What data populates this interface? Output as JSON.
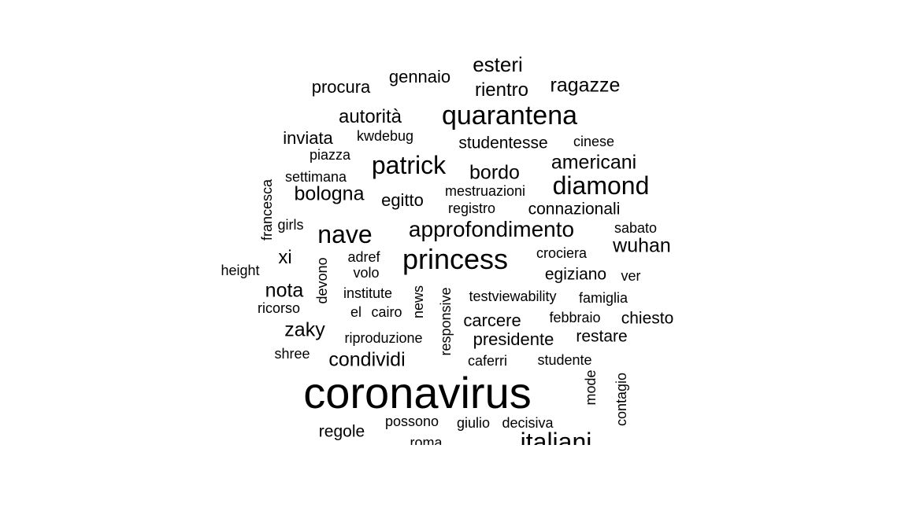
{
  "word_cloud": {
    "text_color": "#000000",
    "background": "#ffffff",
    "words": [
      {
        "text": "coronavirus",
        "vertical": false
      },
      {
        "text": "quarantena",
        "vertical": false
      },
      {
        "text": "princess",
        "vertical": false
      },
      {
        "text": "diamond",
        "vertical": false
      },
      {
        "text": "patrick",
        "vertical": false
      },
      {
        "text": "nave",
        "vertical": false
      },
      {
        "text": "italiani",
        "vertical": false
      },
      {
        "text": "approfondimento",
        "vertical": false
      },
      {
        "text": "esteri",
        "vertical": false
      },
      {
        "text": "ragazze",
        "vertical": false
      },
      {
        "text": "rientro",
        "vertical": false
      },
      {
        "text": "gennaio",
        "vertical": false
      },
      {
        "text": "procura",
        "vertical": false
      },
      {
        "text": "autorità",
        "vertical": false
      },
      {
        "text": "inviata",
        "vertical": false
      },
      {
        "text": "kwdebug",
        "vertical": false
      },
      {
        "text": "studentesse",
        "vertical": false
      },
      {
        "text": "cinese",
        "vertical": false
      },
      {
        "text": "piazza",
        "vertical": false
      },
      {
        "text": "settimana",
        "vertical": false
      },
      {
        "text": "bordo",
        "vertical": false
      },
      {
        "text": "americani",
        "vertical": false
      },
      {
        "text": "bologna",
        "vertical": false
      },
      {
        "text": "egitto",
        "vertical": false
      },
      {
        "text": "mestruazioni",
        "vertical": false
      },
      {
        "text": "registro",
        "vertical": false
      },
      {
        "text": "connazionali",
        "vertical": false
      },
      {
        "text": "francesca",
        "vertical": true
      },
      {
        "text": "girls",
        "vertical": false
      },
      {
        "text": "sabato",
        "vertical": false
      },
      {
        "text": "wuhan",
        "vertical": false
      },
      {
        "text": "xi",
        "vertical": false
      },
      {
        "text": "adref",
        "vertical": false
      },
      {
        "text": "crociera",
        "vertical": false
      },
      {
        "text": "height",
        "vertical": false
      },
      {
        "text": "devono",
        "vertical": true
      },
      {
        "text": "volo",
        "vertical": false
      },
      {
        "text": "egiziano",
        "vertical": false
      },
      {
        "text": "ver",
        "vertical": false
      },
      {
        "text": "nota",
        "vertical": false
      },
      {
        "text": "institute",
        "vertical": false
      },
      {
        "text": "news",
        "vertical": true
      },
      {
        "text": "responsive",
        "vertical": true
      },
      {
        "text": "testviewability",
        "vertical": false
      },
      {
        "text": "famiglia",
        "vertical": false
      },
      {
        "text": "ricorso",
        "vertical": false
      },
      {
        "text": "el",
        "vertical": false
      },
      {
        "text": "cairo",
        "vertical": false
      },
      {
        "text": "carcere",
        "vertical": false
      },
      {
        "text": "febbraio",
        "vertical": false
      },
      {
        "text": "chiesto",
        "vertical": false
      },
      {
        "text": "zaky",
        "vertical": false
      },
      {
        "text": "riproduzione",
        "vertical": false
      },
      {
        "text": "presidente",
        "vertical": false
      },
      {
        "text": "restare",
        "vertical": false
      },
      {
        "text": "shree",
        "vertical": false
      },
      {
        "text": "condividi",
        "vertical": false
      },
      {
        "text": "caferri",
        "vertical": false
      },
      {
        "text": "studente",
        "vertical": false
      },
      {
        "text": "mode",
        "vertical": true
      },
      {
        "text": "contagio",
        "vertical": true
      },
      {
        "text": "possono",
        "vertical": false
      },
      {
        "text": "giulio",
        "vertical": false
      },
      {
        "text": "decisiva",
        "vertical": false
      },
      {
        "text": "regole",
        "vertical": false
      },
      {
        "text": "roma",
        "vertical": false
      }
    ]
  }
}
